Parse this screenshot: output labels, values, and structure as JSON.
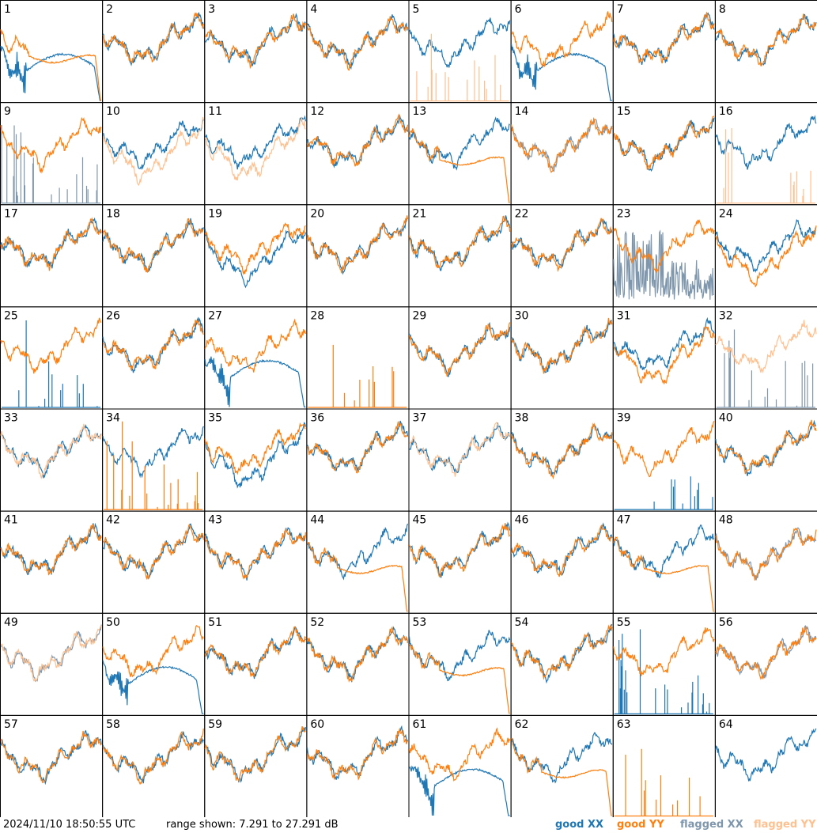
{
  "footer": {
    "timestamp": "2024/11/10 18:50:55 UTC",
    "range_text": "range shown: 7.291 to 27.291 dB"
  },
  "legend": [
    {
      "key": "goodXX",
      "label": "good XX",
      "color": "#1f77b4"
    },
    {
      "key": "goodYY",
      "label": "good YY",
      "color": "#ff7f0e"
    },
    {
      "key": "flagXX",
      "label": "flagged XX",
      "color": "#7f97ad"
    },
    {
      "key": "flagYY",
      "label": "flagged YY",
      "color": "#ffc08f"
    }
  ],
  "chart_data": {
    "type": "line",
    "layout": "small-multiples 8x8",
    "range_db": [
      7.291,
      27.291
    ],
    "panels": [
      {
        "id": "1",
        "xx": {
          "state": "good",
          "shape": "dip"
        },
        "yy": {
          "state": "good",
          "shape": "drop"
        }
      },
      {
        "id": "2",
        "xx": {
          "state": "good",
          "shape": "normal"
        },
        "yy": {
          "state": "good",
          "shape": "normal"
        }
      },
      {
        "id": "3",
        "xx": {
          "state": "good",
          "shape": "normal"
        },
        "yy": {
          "state": "good",
          "shape": "normal"
        }
      },
      {
        "id": "4",
        "xx": {
          "state": "good",
          "shape": "normal"
        },
        "yy": {
          "state": "good",
          "shape": "normal"
        }
      },
      {
        "id": "5",
        "xx": {
          "state": "good",
          "shape": "normal"
        },
        "yy": {
          "state": "flagged",
          "shape": "spikes"
        }
      },
      {
        "id": "6",
        "xx": {
          "state": "good",
          "shape": "dip"
        },
        "yy": {
          "state": "good",
          "shape": "normal"
        }
      },
      {
        "id": "7",
        "xx": {
          "state": "good",
          "shape": "normal"
        },
        "yy": {
          "state": "good",
          "shape": "normal"
        }
      },
      {
        "id": "8",
        "xx": {
          "state": "good",
          "shape": "normal"
        },
        "yy": {
          "state": "good",
          "shape": "normal"
        }
      },
      {
        "id": "9",
        "xx": {
          "state": "flagged",
          "shape": "spikes"
        },
        "yy": {
          "state": "good",
          "shape": "normal"
        }
      },
      {
        "id": "10",
        "xx": {
          "state": "good",
          "shape": "normal"
        },
        "yy": {
          "state": "flagged",
          "shape": "low"
        }
      },
      {
        "id": "11",
        "xx": {
          "state": "good",
          "shape": "normal"
        },
        "yy": {
          "state": "flagged",
          "shape": "low"
        }
      },
      {
        "id": "12",
        "xx": {
          "state": "good",
          "shape": "normal"
        },
        "yy": {
          "state": "good",
          "shape": "normal"
        }
      },
      {
        "id": "13",
        "xx": {
          "state": "good",
          "shape": "normal"
        },
        "yy": {
          "state": "good",
          "shape": "drop"
        }
      },
      {
        "id": "14",
        "xx": {
          "state": "flagged",
          "shape": "normal"
        },
        "yy": {
          "state": "good",
          "shape": "normal"
        }
      },
      {
        "id": "15",
        "xx": {
          "state": "good",
          "shape": "normal"
        },
        "yy": {
          "state": "good",
          "shape": "normal"
        }
      },
      {
        "id": "16",
        "xx": {
          "state": "good",
          "shape": "normal"
        },
        "yy": {
          "state": "flagged",
          "shape": "spikes"
        }
      },
      {
        "id": "17",
        "xx": {
          "state": "good",
          "shape": "normal"
        },
        "yy": {
          "state": "good",
          "shape": "normal"
        }
      },
      {
        "id": "18",
        "xx": {
          "state": "good",
          "shape": "normal"
        },
        "yy": {
          "state": "good",
          "shape": "normal"
        }
      },
      {
        "id": "19",
        "xx": {
          "state": "good",
          "shape": "low"
        },
        "yy": {
          "state": "good",
          "shape": "normal"
        }
      },
      {
        "id": "20",
        "xx": {
          "state": "good",
          "shape": "normal"
        },
        "yy": {
          "state": "good",
          "shape": "normal"
        }
      },
      {
        "id": "21",
        "xx": {
          "state": "good",
          "shape": "normal"
        },
        "yy": {
          "state": "good",
          "shape": "normal"
        }
      },
      {
        "id": "22",
        "xx": {
          "state": "good",
          "shape": "normal"
        },
        "yy": {
          "state": "good",
          "shape": "normal"
        }
      },
      {
        "id": "23",
        "xx": {
          "state": "flagged",
          "shape": "noise"
        },
        "yy": {
          "state": "good",
          "shape": "normal"
        }
      },
      {
        "id": "24",
        "xx": {
          "state": "good",
          "shape": "normal"
        },
        "yy": {
          "state": "good",
          "shape": "low"
        }
      },
      {
        "id": "25",
        "xx": {
          "state": "good",
          "shape": "spikes"
        },
        "yy": {
          "state": "good",
          "shape": "normal"
        }
      },
      {
        "id": "26",
        "xx": {
          "state": "good",
          "shape": "normal"
        },
        "yy": {
          "state": "good",
          "shape": "normal"
        }
      },
      {
        "id": "27",
        "xx": {
          "state": "good",
          "shape": "dip"
        },
        "yy": {
          "state": "good",
          "shape": "normal"
        }
      },
      {
        "id": "28",
        "xx": {
          "state": "good",
          "shape": "none"
        },
        "yy": {
          "state": "good",
          "shape": "spikes"
        }
      },
      {
        "id": "29",
        "xx": {
          "state": "good",
          "shape": "normal"
        },
        "yy": {
          "state": "good",
          "shape": "normal"
        }
      },
      {
        "id": "30",
        "xx": {
          "state": "good",
          "shape": "normal"
        },
        "yy": {
          "state": "good",
          "shape": "normal"
        }
      },
      {
        "id": "31",
        "xx": {
          "state": "good",
          "shape": "normal"
        },
        "yy": {
          "state": "good",
          "shape": "low"
        }
      },
      {
        "id": "32",
        "xx": {
          "state": "flagged",
          "shape": "spikes"
        },
        "yy": {
          "state": "flagged",
          "shape": "normal"
        }
      },
      {
        "id": "33",
        "xx": {
          "state": "good",
          "shape": "normal"
        },
        "yy": {
          "state": "flagged",
          "shape": "normal"
        }
      },
      {
        "id": "34",
        "xx": {
          "state": "good",
          "shape": "normal"
        },
        "yy": {
          "state": "good",
          "shape": "spikes"
        }
      },
      {
        "id": "35",
        "xx": {
          "state": "good",
          "shape": "low"
        },
        "yy": {
          "state": "good",
          "shape": "normal"
        }
      },
      {
        "id": "36",
        "xx": {
          "state": "good",
          "shape": "normal"
        },
        "yy": {
          "state": "good",
          "shape": "normal"
        }
      },
      {
        "id": "37",
        "xx": {
          "state": "good",
          "shape": "normal"
        },
        "yy": {
          "state": "flagged",
          "shape": "normal"
        }
      },
      {
        "id": "38",
        "xx": {
          "state": "good",
          "shape": "normal"
        },
        "yy": {
          "state": "good",
          "shape": "normal"
        }
      },
      {
        "id": "39",
        "xx": {
          "state": "good",
          "shape": "spikes"
        },
        "yy": {
          "state": "good",
          "shape": "normal"
        }
      },
      {
        "id": "40",
        "xx": {
          "state": "good",
          "shape": "normal"
        },
        "yy": {
          "state": "good",
          "shape": "normal"
        }
      },
      {
        "id": "41",
        "xx": {
          "state": "good",
          "shape": "normal"
        },
        "yy": {
          "state": "good",
          "shape": "normal"
        }
      },
      {
        "id": "42",
        "xx": {
          "state": "good",
          "shape": "normal"
        },
        "yy": {
          "state": "good",
          "shape": "normal"
        }
      },
      {
        "id": "43",
        "xx": {
          "state": "good",
          "shape": "normal"
        },
        "yy": {
          "state": "good",
          "shape": "normal"
        }
      },
      {
        "id": "44",
        "xx": {
          "state": "good",
          "shape": "normal"
        },
        "yy": {
          "state": "good",
          "shape": "drop"
        }
      },
      {
        "id": "45",
        "xx": {
          "state": "good",
          "shape": "normal"
        },
        "yy": {
          "state": "good",
          "shape": "normal"
        }
      },
      {
        "id": "46",
        "xx": {
          "state": "good",
          "shape": "normal"
        },
        "yy": {
          "state": "good",
          "shape": "normal"
        }
      },
      {
        "id": "47",
        "xx": {
          "state": "good",
          "shape": "normal"
        },
        "yy": {
          "state": "good",
          "shape": "drop"
        }
      },
      {
        "id": "48",
        "xx": {
          "state": "flagged",
          "shape": "normal"
        },
        "yy": {
          "state": "good",
          "shape": "normal"
        }
      },
      {
        "id": "49",
        "xx": {
          "state": "flagged",
          "shape": "normal"
        },
        "yy": {
          "state": "flagged",
          "shape": "normal"
        }
      },
      {
        "id": "50",
        "xx": {
          "state": "good",
          "shape": "dip"
        },
        "yy": {
          "state": "good",
          "shape": "normal"
        }
      },
      {
        "id": "51",
        "xx": {
          "state": "good",
          "shape": "normal"
        },
        "yy": {
          "state": "good",
          "shape": "normal"
        }
      },
      {
        "id": "52",
        "xx": {
          "state": "good",
          "shape": "normal"
        },
        "yy": {
          "state": "good",
          "shape": "normal"
        }
      },
      {
        "id": "53",
        "xx": {
          "state": "good",
          "shape": "normal"
        },
        "yy": {
          "state": "good",
          "shape": "drop"
        }
      },
      {
        "id": "54",
        "xx": {
          "state": "good",
          "shape": "normal"
        },
        "yy": {
          "state": "good",
          "shape": "normal"
        }
      },
      {
        "id": "55",
        "xx": {
          "state": "good",
          "shape": "spikes"
        },
        "yy": {
          "state": "good",
          "shape": "normal"
        }
      },
      {
        "id": "56",
        "xx": {
          "state": "flagged",
          "shape": "normal"
        },
        "yy": {
          "state": "good",
          "shape": "normal"
        }
      },
      {
        "id": "57",
        "xx": {
          "state": "good",
          "shape": "normal"
        },
        "yy": {
          "state": "good",
          "shape": "normal"
        }
      },
      {
        "id": "58",
        "xx": {
          "state": "good",
          "shape": "normal"
        },
        "yy": {
          "state": "good",
          "shape": "normal"
        }
      },
      {
        "id": "59",
        "xx": {
          "state": "good",
          "shape": "normal"
        },
        "yy": {
          "state": "good",
          "shape": "normal"
        }
      },
      {
        "id": "60",
        "xx": {
          "state": "good",
          "shape": "normal"
        },
        "yy": {
          "state": "good",
          "shape": "normal"
        }
      },
      {
        "id": "61",
        "xx": {
          "state": "good",
          "shape": "dip"
        },
        "yy": {
          "state": "good",
          "shape": "normal"
        }
      },
      {
        "id": "62",
        "xx": {
          "state": "good",
          "shape": "normal"
        },
        "yy": {
          "state": "good",
          "shape": "drop"
        }
      },
      {
        "id": "63",
        "xx": {
          "state": "good",
          "shape": "none"
        },
        "yy": {
          "state": "good",
          "shape": "spikes"
        }
      },
      {
        "id": "64",
        "xx": {
          "state": "good",
          "shape": "normal"
        },
        "yy": {
          "state": "good",
          "shape": "none"
        }
      }
    ]
  }
}
